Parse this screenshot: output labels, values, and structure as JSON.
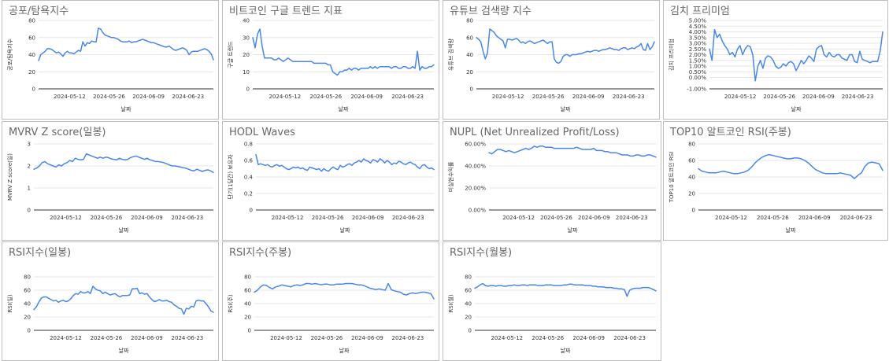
{
  "chart_data": [
    {
      "type": "line",
      "title": "공포/탐욕지수",
      "xlabel": "날짜",
      "ylabel": "공포/탐욕지수",
      "ylim": [
        0,
        80
      ],
      "yticks": [
        0,
        20,
        40,
        60,
        80
      ],
      "yticklabels": [
        "0",
        "20",
        "40",
        "60",
        "80"
      ],
      "xticks": [
        "2024-05-12",
        "2024-05-26",
        "2024-06-09",
        "2024-06-23"
      ],
      "x_start": "2024-05-01",
      "x_end": "2024-07-02",
      "series": [
        {
          "values": [
            33,
            40,
            42,
            44,
            47,
            47,
            46,
            44,
            42,
            43,
            41,
            38,
            42,
            44,
            42,
            42,
            41,
            43,
            45,
            44,
            55,
            50,
            54,
            53,
            56,
            55,
            55,
            71,
            70,
            66,
            63,
            62,
            61,
            60,
            60,
            59,
            58,
            56,
            55,
            55,
            55,
            56,
            54,
            55,
            55,
            56,
            57,
            58,
            57,
            56,
            55,
            54,
            54,
            53,
            52,
            51,
            50,
            49,
            49,
            50,
            48,
            46,
            45,
            46,
            47,
            48,
            47,
            45,
            40,
            43,
            44,
            44,
            44,
            45,
            46,
            47,
            46,
            44,
            41,
            34
          ]
        }
      ]
    },
    {
      "type": "line",
      "title": "비트코인 구글 트렌드 지표",
      "xlabel": "날짜",
      "ylabel": "구글 트렌드",
      "ylim": [
        0,
        40
      ],
      "yticks": [
        0,
        10,
        20,
        30,
        40
      ],
      "yticklabels": [
        "0",
        "10",
        "20",
        "30",
        "40"
      ],
      "xticks": [
        "2024-05-12",
        "2024-05-26",
        "2024-06-09",
        "2024-06-23"
      ],
      "x_start": "2024-05-01",
      "x_end": "2024-07-02",
      "series": [
        {
          "values": [
            30,
            24,
            32,
            35,
            25,
            18,
            18,
            18,
            18,
            17,
            17,
            18,
            17,
            16,
            17,
            18,
            17,
            16,
            16,
            16,
            16,
            16,
            16,
            16,
            16,
            16,
            15,
            15,
            15,
            15,
            15,
            15,
            14,
            14,
            10,
            9,
            8,
            10,
            10,
            11,
            11,
            12,
            11,
            12,
            12,
            11,
            12,
            12,
            12,
            12,
            13,
            12,
            13,
            12,
            13,
            13,
            13,
            13,
            13,
            12,
            13,
            13,
            12,
            12,
            13,
            13,
            12,
            12,
            13,
            12,
            22,
            11,
            13,
            12,
            12,
            13,
            13,
            14
          ]
        }
      ]
    },
    {
      "type": "line",
      "title": "유튜브 검색량 지수",
      "xlabel": "날짜",
      "ylabel": "유튜브 검색량",
      "ylim": [
        0,
        80
      ],
      "yticks": [
        0,
        20,
        40,
        60,
        80
      ],
      "yticklabels": [
        "0",
        "20",
        "40",
        "60",
        "80"
      ],
      "xticks": [
        "2024-05-12",
        "2024-05-26",
        "2024-06-09",
        "2024-06-23"
      ],
      "x_start": "2024-05-01",
      "x_end": "2024-07-02",
      "series": [
        {
          "values": [
            60,
            58,
            55,
            44,
            35,
            42,
            70,
            68,
            66,
            62,
            60,
            58,
            56,
            48,
            58,
            58,
            57,
            58,
            59,
            57,
            54,
            55,
            53,
            55,
            56,
            55,
            53,
            54,
            55,
            56,
            57,
            55,
            53,
            55,
            55,
            35,
            31,
            30,
            32,
            38,
            40,
            40,
            38,
            40,
            40,
            40,
            41,
            41,
            42,
            43,
            44,
            43,
            44,
            45,
            45,
            44,
            45,
            46,
            46,
            47,
            48,
            47,
            46,
            46,
            45,
            47,
            48,
            48,
            46,
            47,
            48,
            47,
            49,
            50,
            53,
            46,
            45,
            53,
            46,
            49,
            55
          ]
        }
      ]
    },
    {
      "type": "line",
      "title": "김치 프리미엄",
      "xlabel": "날짜",
      "ylabel": "김치 프리미엄",
      "ylim": [
        -1,
        5
      ],
      "yticks": [
        -1,
        0,
        0.5,
        1,
        1.5,
        2,
        2.5,
        3,
        3.5,
        4,
        4.5,
        5
      ],
      "yticklabels": [
        "-1.00%",
        "0.00%",
        "0.50%",
        "1.00%",
        "1.50%",
        "2.00%",
        "2.50%",
        "3.00%",
        "3.50%",
        "4.00%",
        "4.50%",
        "5.00%"
      ],
      "xticks": [
        "2024-05-12",
        "2024-05-26",
        "2024-06-09",
        "2024-06-23"
      ],
      "x_start": "2024-05-01",
      "x_end": "2024-07-02",
      "series": [
        {
          "values": [
            2.5,
            1.5,
            4.2,
            3.5,
            3.8,
            3.2,
            2.8,
            2.5,
            2.0,
            2.2,
            1.8,
            2.5,
            2.8,
            2.0,
            2.5,
            2.8,
            2.7,
            2.0,
            -0.3,
            1.0,
            1.5,
            0.8,
            1.7,
            1.9,
            1.8,
            1.5,
            1.0,
            0.8,
            0.9,
            1.2,
            1.0,
            1.3,
            1.4,
            1.2,
            0.6,
            1.0,
            1.5,
            1.2,
            1.5,
            1.9,
            1.7,
            1.4,
            2.5,
            2.7,
            2.8,
            2.0,
            1.8,
            2.2,
            1.9,
            1.8,
            2.0,
            2.0,
            1.7,
            1.6,
            1.5,
            2.0,
            2.0,
            1.4,
            1.3,
            2.3,
            1.6,
            1.5,
            1.4,
            1.3,
            1.4,
            1.4,
            1.4,
            2.3,
            4.0
          ]
        }
      ]
    },
    {
      "type": "line",
      "title": "MVRV Z score(일봉)",
      "xlabel": "날짜",
      "ylabel": "MVRV Z score(일)",
      "ylim": [
        0,
        3
      ],
      "yticks": [
        0,
        1,
        2,
        3
      ],
      "yticklabels": [
        "0",
        "1",
        "2",
        "3"
      ],
      "xticks": [
        "2024-05-12",
        "2024-05-26",
        "2024-06-09",
        "2024-06-23"
      ],
      "x_start": "2024-05-01",
      "x_end": "2024-07-02",
      "series": [
        {
          "values": [
            1.85,
            1.9,
            2.0,
            2.15,
            2.2,
            2.1,
            2.05,
            2.0,
            1.95,
            2.05,
            2.0,
            2.1,
            2.15,
            2.25,
            2.2,
            2.35,
            2.3,
            2.28,
            2.3,
            2.55,
            2.5,
            2.45,
            2.4,
            2.35,
            2.4,
            2.35,
            2.4,
            2.38,
            2.32,
            2.3,
            2.28,
            2.35,
            2.3,
            2.28,
            2.3,
            2.38,
            2.42,
            2.45,
            2.4,
            2.35,
            2.3,
            2.35,
            2.28,
            2.25,
            2.2,
            2.2,
            2.18,
            2.15,
            2.1,
            2.05,
            2.0,
            2.0,
            1.98,
            1.95,
            1.92,
            1.9,
            1.85,
            1.8,
            1.78,
            1.85,
            1.8,
            1.75,
            1.8,
            1.82,
            1.78,
            1.7
          ]
        }
      ]
    },
    {
      "type": "line",
      "title": "HODL Waves",
      "xlabel": "날짜",
      "ylabel": "단기(1달간) 보유자",
      "ylim": [
        0,
        0.8
      ],
      "yticks": [
        0,
        0.2,
        0.4,
        0.6,
        0.8
      ],
      "yticklabels": [
        "0",
        "0.2",
        "0.4",
        "0.6",
        "0.8"
      ],
      "xticks": [
        "2024-05-12",
        "2024-05-26",
        "2024-06-09",
        "2024-06-23"
      ],
      "x_start": "2024-05-01",
      "x_end": "2024-07-02",
      "series": [
        {
          "values": [
            0.67,
            0.55,
            0.56,
            0.55,
            0.54,
            0.55,
            0.53,
            0.52,
            0.54,
            0.55,
            0.53,
            0.54,
            0.52,
            0.5,
            0.49,
            0.5,
            0.52,
            0.51,
            0.52,
            0.5,
            0.51,
            0.49,
            0.48,
            0.52,
            0.51,
            0.5,
            0.49,
            0.5,
            0.47,
            0.5,
            0.48,
            0.47,
            0.5,
            0.52,
            0.5,
            0.49,
            0.54,
            0.52,
            0.53,
            0.55,
            0.56,
            0.54,
            0.57,
            0.58,
            0.6,
            0.58,
            0.62,
            0.6,
            0.59,
            0.57,
            0.61,
            0.6,
            0.58,
            0.62,
            0.6,
            0.57,
            0.6,
            0.58,
            0.55,
            0.57,
            0.56,
            0.59,
            0.58,
            0.56,
            0.55,
            0.57,
            0.58,
            0.56,
            0.55,
            0.52,
            0.5,
            0.54,
            0.55,
            0.52,
            0.5,
            0.51,
            0.49
          ]
        }
      ]
    },
    {
      "type": "line",
      "title": "NUPL (Net Unrealized Profit/Loss)",
      "xlabel": "날짜",
      "ylabel": "미실현수익률",
      "ylim": [
        0,
        0.6
      ],
      "yticks": [
        0,
        0.2,
        0.4,
        0.6
      ],
      "yticklabels": [
        "0.00%",
        "20.00%",
        "40.00%",
        "60.00%"
      ],
      "xticks": [
        "2024-05-12",
        "2024-05-26",
        "2024-06-09",
        "2024-06-23"
      ],
      "x_start": "2024-05-01",
      "x_end": "2024-07-02",
      "series": [
        {
          "values": [
            0.52,
            0.51,
            0.53,
            0.55,
            0.55,
            0.54,
            0.53,
            0.54,
            0.53,
            0.52,
            0.53,
            0.54,
            0.55,
            0.56,
            0.55,
            0.56,
            0.58,
            0.57,
            0.58,
            0.58,
            0.57,
            0.57,
            0.57,
            0.56,
            0.56,
            0.56,
            0.56,
            0.56,
            0.56,
            0.56,
            0.56,
            0.57,
            0.56,
            0.55,
            0.55,
            0.55,
            0.55,
            0.56,
            0.54,
            0.54,
            0.54,
            0.53,
            0.53,
            0.52,
            0.52,
            0.52,
            0.51,
            0.5,
            0.5,
            0.5,
            0.49,
            0.49,
            0.5,
            0.5,
            0.49,
            0.49,
            0.5,
            0.5,
            0.49,
            0.48
          ]
        }
      ]
    },
    {
      "type": "line",
      "title": "TOP10 알트코인 RSI(주봉)",
      "xlabel": "날짜",
      "ylabel": "TOP10 알트코인 RSI",
      "ylim": [
        0,
        80
      ],
      "yticks": [
        0,
        20,
        40,
        60,
        80
      ],
      "yticklabels": [
        "0",
        "20",
        "40",
        "60",
        "80"
      ],
      "xticks": [
        "2024-05-12",
        "2024-05-26",
        "2024-06-09",
        "2024-06-23"
      ],
      "x_start": "2024-05-01",
      "x_end": "2024-07-02",
      "series": [
        {
          "values": [
            50,
            47,
            46,
            45,
            45,
            45,
            46,
            47,
            46,
            45,
            44,
            44,
            45,
            46,
            48,
            52,
            57,
            61,
            64,
            66,
            67,
            66,
            65,
            64,
            63,
            62,
            62,
            63,
            63,
            62,
            60,
            57,
            53,
            49,
            47,
            45,
            44,
            44,
            44,
            44,
            45,
            44,
            43,
            42,
            38,
            42,
            45,
            53,
            57,
            58,
            57,
            56,
            48
          ]
        }
      ]
    },
    {
      "type": "line",
      "title": "RSI지수(일봉)",
      "xlabel": "날짜",
      "ylabel": "RSI(일)",
      "ylim": [
        0,
        80
      ],
      "yticks": [
        0,
        20,
        40,
        60,
        80
      ],
      "yticklabels": [
        "0",
        "20",
        "40",
        "60",
        "80"
      ],
      "xticks": [
        "2024-05-12",
        "2024-05-26",
        "2024-06-09",
        "2024-06-23"
      ],
      "x_start": "2024-05-01",
      "x_end": "2024-07-02",
      "series": [
        {
          "values": [
            31,
            35,
            42,
            48,
            50,
            50,
            48,
            46,
            44,
            45,
            42,
            44,
            45,
            43,
            44,
            47,
            52,
            55,
            54,
            58,
            56,
            56,
            58,
            55,
            66,
            62,
            60,
            59,
            55,
            57,
            55,
            53,
            54,
            55,
            52,
            50,
            52,
            52,
            52,
            53,
            62,
            62,
            63,
            55,
            56,
            54,
            55,
            50,
            46,
            43,
            44,
            46,
            44,
            44,
            45,
            43,
            42,
            38,
            36,
            33,
            32,
            24,
            33,
            32,
            36,
            35,
            44,
            45,
            44,
            44,
            40,
            35,
            29,
            27
          ]
        }
      ]
    },
    {
      "type": "line",
      "title": "RSI지수(주봉)",
      "xlabel": "날짜",
      "ylabel": "RSI(주)",
      "ylim": [
        0,
        80
      ],
      "yticks": [
        0,
        20,
        40,
        60,
        80
      ],
      "yticklabels": [
        "0",
        "20",
        "40",
        "60",
        "80"
      ],
      "xticks": [
        "2024-05-12",
        "2024-05-26",
        "2024-06-09",
        "2024-06-23"
      ],
      "x_start": "2024-05-01",
      "x_end": "2024-07-02",
      "series": [
        {
          "values": [
            57,
            60,
            65,
            68,
            67,
            64,
            62,
            65,
            66,
            68,
            67,
            66,
            65,
            67,
            68,
            67,
            68,
            70,
            70,
            69,
            70,
            69,
            68,
            69,
            69,
            68,
            68,
            69,
            69,
            69,
            70,
            70,
            70,
            69,
            68,
            68,
            67,
            65,
            63,
            62,
            61,
            62,
            61,
            60,
            70,
            61,
            59,
            58,
            57,
            54,
            53,
            55,
            56,
            55,
            56,
            57,
            57,
            56,
            55,
            47
          ]
        }
      ]
    },
    {
      "type": "line",
      "title": "RSI지수(월봉)",
      "xlabel": "날짜",
      "ylabel": "RSI(월)",
      "ylim": [
        0,
        80
      ],
      "yticks": [
        0,
        20,
        40,
        60,
        80
      ],
      "yticklabels": [
        "0",
        "20",
        "40",
        "60",
        "80"
      ],
      "xticks": [
        "2024-05-12",
        "2024-05-26",
        "2024-06-09",
        "2024-06-23"
      ],
      "x_start": "2024-05-01",
      "x_end": "2024-07-02",
      "series": [
        {
          "values": [
            63,
            65,
            68,
            70,
            67,
            66,
            67,
            67,
            66,
            67,
            67,
            66,
            66,
            67,
            67,
            68,
            67,
            67,
            68,
            68,
            67,
            68,
            68,
            68,
            67,
            67,
            67,
            68,
            68,
            68,
            67,
            67,
            67,
            67,
            68,
            68,
            69,
            69,
            68,
            68,
            68,
            68,
            67,
            67,
            67,
            66,
            66,
            65,
            65,
            65,
            64,
            64,
            64,
            63,
            63,
            62,
            62,
            61,
            51,
            60,
            62,
            63,
            63,
            63,
            64,
            64,
            64,
            63,
            61,
            59
          ]
        }
      ]
    }
  ]
}
